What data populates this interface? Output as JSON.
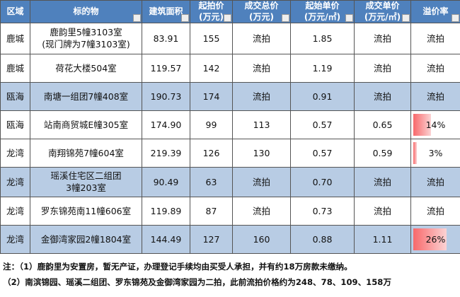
{
  "table": {
    "header": [
      "区域",
      "标的物",
      "建筑面积",
      "起拍价\n(万元)",
      "成交总价\n(万元)",
      "起始单价\n(万元/㎡)",
      "成交单价\n(万元/㎡)",
      "溢价率"
    ],
    "rows": [
      [
        "鹿城",
        "鹿韵里5幢3103室\n(现门牌为7幢3103室)",
        "83.91",
        "155",
        "流拍",
        "1.85",
        "流拍",
        "流拍"
      ],
      [
        "鹿城",
        "荷花大楼504室",
        "119.57",
        "142",
        "流拍",
        "1.19",
        "流拍",
        "流拍"
      ],
      [
        "瓯海",
        "南塘一组团7幢408室",
        "190.73",
        "174",
        "流拍",
        "0.91",
        "流拍",
        "流拍"
      ],
      [
        "瓯海",
        "站南商贸城E幢305室",
        "174.90",
        "99",
        "113",
        "0.57",
        "0.65",
        {
          "value": 14,
          "label": "14%"
        }
      ],
      [
        "龙湾",
        "南翔锦苑7幢604室",
        "219.39",
        "126",
        "130",
        "0.57",
        "0.59",
        {
          "value": 3,
          "label": "3%"
        }
      ],
      [
        "龙湾",
        "瑶溪住宅区二组团\n3幢203室",
        "90.49",
        "63",
        "流拍",
        "0.70",
        "流拍",
        "流拍"
      ],
      [
        "龙湾",
        "罗东锦苑南11幢606室",
        "119.89",
        "87",
        "流拍",
        "0.73",
        "流拍",
        "流拍"
      ],
      [
        "龙湾",
        "金御湾家园2幢1804室",
        "144.49",
        "127",
        "160",
        "0.88",
        "1.11",
        {
          "value": 26,
          "label": "26%"
        }
      ]
    ],
    "highlighted_rows": [
      2,
      5,
      7
    ]
  },
  "notes": [
    "注：（1）鹿韵里为安置房，暂无产证，办理登记手续均由买受人承担，并有约18万房款未缴纳。",
    "（2）南滨锦园、瑶溪二组团、罗东锦苑及金御湾家园为二拍，此前流拍价格约为248、78、109、158万"
  ]
}
